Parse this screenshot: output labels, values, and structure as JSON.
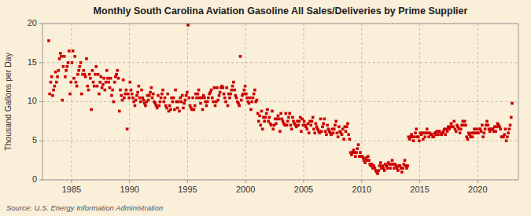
{
  "chart_data": {
    "type": "scatter",
    "title": "Monthly South Carolina Aviation Gasoline All Sales/Deliveries by Prime Supplier",
    "ylabel": "Thousand Gallons per Day",
    "source": "Source: U.S. Energy Information Administration",
    "color": "#cc0000",
    "marker": "square",
    "grid": true,
    "xlim": [
      1982.5,
      2023.5
    ],
    "ylim": [
      0,
      20
    ],
    "xticks": [
      1985,
      1990,
      1995,
      2000,
      2005,
      2010,
      2015,
      2020
    ],
    "yticks": [
      0,
      5,
      10,
      15,
      20
    ],
    "x": [
      1983.0417,
      1983.125,
      1983.2083,
      1983.2917,
      1983.375,
      1983.4583,
      1983.5417,
      1983.625,
      1983.7083,
      1983.7917,
      1983.875,
      1983.9583,
      1984.0417,
      1984.125,
      1984.2083,
      1984.2917,
      1984.375,
      1984.4583,
      1984.5417,
      1984.625,
      1984.7083,
      1984.7917,
      1984.875,
      1984.9583,
      1985.0417,
      1985.125,
      1985.2083,
      1985.2917,
      1985.375,
      1985.4583,
      1985.5417,
      1985.625,
      1985.7083,
      1985.7917,
      1985.875,
      1985.9583,
      1986.0417,
      1986.125,
      1986.2083,
      1986.2917,
      1986.375,
      1986.4583,
      1986.5417,
      1986.625,
      1986.7083,
      1986.7917,
      1986.875,
      1986.9583,
      1987.0417,
      1987.125,
      1987.2083,
      1987.2917,
      1987.375,
      1987.4583,
      1987.5417,
      1987.625,
      1987.7083,
      1987.7917,
      1987.875,
      1987.9583,
      1988.0417,
      1988.125,
      1988.2083,
      1988.2917,
      1988.375,
      1988.4583,
      1988.5417,
      1988.625,
      1988.7083,
      1988.7917,
      1988.875,
      1988.9583,
      1989.0417,
      1989.125,
      1989.2083,
      1989.2917,
      1989.375,
      1989.4583,
      1989.5417,
      1989.625,
      1989.7083,
      1989.7917,
      1989.875,
      1989.9583,
      1990.0417,
      1990.125,
      1990.2083,
      1990.2917,
      1990.375,
      1990.4583,
      1990.5417,
      1990.625,
      1990.7083,
      1990.7917,
      1990.875,
      1990.9583,
      1991.0417,
      1991.125,
      1991.2083,
      1991.2917,
      1991.375,
      1991.4583,
      1991.5417,
      1991.625,
      1991.7083,
      1991.7917,
      1991.875,
      1991.9583,
      1992.0417,
      1992.125,
      1992.2083,
      1992.2917,
      1992.375,
      1992.4583,
      1992.5417,
      1992.625,
      1992.7083,
      1992.7917,
      1992.875,
      1992.9583,
      1993.0417,
      1993.125,
      1993.2083,
      1993.2917,
      1993.375,
      1993.4583,
      1993.5417,
      1993.625,
      1993.7083,
      1993.7917,
      1993.875,
      1993.9583,
      1994.0417,
      1994.125,
      1994.2083,
      1994.2917,
      1994.375,
      1994.4583,
      1994.5417,
      1994.625,
      1994.7083,
      1994.7917,
      1994.875,
      1994.9583,
      1995.0417,
      1995.125,
      1995.2083,
      1995.2917,
      1995.375,
      1995.4583,
      1995.5417,
      1995.625,
      1995.7083,
      1995.7917,
      1995.875,
      1995.9583,
      1996.0417,
      1996.125,
      1996.2083,
      1996.2917,
      1996.375,
      1996.4583,
      1996.5417,
      1996.625,
      1996.7083,
      1996.7917,
      1996.875,
      1996.9583,
      1997.0417,
      1997.125,
      1997.2083,
      1997.2917,
      1997.375,
      1997.4583,
      1997.5417,
      1997.625,
      1997.7083,
      1997.7917,
      1997.875,
      1997.9583,
      1998.0417,
      1998.125,
      1998.2083,
      1998.2917,
      1998.375,
      1998.4583,
      1998.5417,
      1998.625,
      1998.7083,
      1998.7917,
      1998.875,
      1998.9583,
      1999.0417,
      1999.125,
      1999.2083,
      1999.2917,
      1999.375,
      1999.4583,
      1999.5417,
      1999.625,
      1999.7083,
      1999.7917,
      1999.875,
      1999.9583,
      2000.0417,
      2000.125,
      2000.2083,
      2000.2917,
      2000.375,
      2000.4583,
      2000.5417,
      2000.625,
      2000.7083,
      2000.7917,
      2000.875,
      2000.9583,
      2001.0417,
      2001.125,
      2001.2083,
      2001.2917,
      2001.375,
      2001.4583,
      2001.5417,
      2001.625,
      2001.7083,
      2001.7917,
      2001.875,
      2001.9583,
      2002.0417,
      2002.125,
      2002.2083,
      2002.2917,
      2002.375,
      2002.4583,
      2002.5417,
      2002.625,
      2002.7083,
      2002.7917,
      2002.875,
      2002.9583,
      2003.0417,
      2003.125,
      2003.2083,
      2003.2917,
      2003.375,
      2003.4583,
      2003.5417,
      2003.625,
      2003.7083,
      2003.7917,
      2003.875,
      2003.9583,
      2004.0417,
      2004.125,
      2004.2083,
      2004.2917,
      2004.375,
      2004.4583,
      2004.5417,
      2004.625,
      2004.7083,
      2004.7917,
      2004.875,
      2004.9583,
      2005.0417,
      2005.125,
      2005.2083,
      2005.2917,
      2005.375,
      2005.4583,
      2005.5417,
      2005.625,
      2005.7083,
      2005.7917,
      2005.875,
      2005.9583,
      2006.0417,
      2006.125,
      2006.2083,
      2006.2917,
      2006.375,
      2006.4583,
      2006.5417,
      2006.625,
      2006.7083,
      2006.7917,
      2006.875,
      2006.9583,
      2007.0417,
      2007.125,
      2007.2083,
      2007.2917,
      2007.375,
      2007.4583,
      2007.5417,
      2007.625,
      2007.7083,
      2007.7917,
      2007.875,
      2007.9583,
      2008.0417,
      2008.125,
      2008.2083,
      2008.2917,
      2008.375,
      2008.4583,
      2008.5417,
      2008.625,
      2008.7083,
      2008.7917,
      2008.875,
      2008.9583,
      2009.0417,
      2009.125,
      2009.2083,
      2009.2917,
      2009.375,
      2009.4583,
      2009.5417,
      2009.625,
      2009.7083,
      2009.7917,
      2009.875,
      2009.9583,
      2010.0417,
      2010.125,
      2010.2083,
      2010.2917,
      2010.375,
      2010.4583,
      2010.5417,
      2010.625,
      2010.7083,
      2010.7917,
      2010.875,
      2010.9583,
      2011.0417,
      2011.125,
      2011.2083,
      2011.2917,
      2011.375,
      2011.4583,
      2011.5417,
      2011.625,
      2011.7083,
      2011.7917,
      2011.875,
      2011.9583,
      2012.0417,
      2012.125,
      2012.2083,
      2012.2917,
      2012.375,
      2012.4583,
      2012.5417,
      2012.625,
      2012.7083,
      2012.7917,
      2012.875,
      2012.9583,
      2013.0417,
      2013.125,
      2013.2083,
      2013.2917,
      2013.375,
      2013.4583,
      2013.5417,
      2013.625,
      2013.7083,
      2013.7917,
      2013.875,
      2013.9583,
      2014.0417,
      2014.125,
      2014.2083,
      2014.2917,
      2014.375,
      2014.4583,
      2014.5417,
      2014.625,
      2014.7083,
      2014.7917,
      2014.875,
      2014.9583,
      2015.0417,
      2015.125,
      2015.2083,
      2015.2917,
      2015.375,
      2015.4583,
      2015.5417,
      2015.625,
      2015.7083,
      2015.7917,
      2015.875,
      2015.9583,
      2016.0417,
      2016.125,
      2016.2083,
      2016.2917,
      2016.375,
      2016.4583,
      2016.5417,
      2016.625,
      2016.7083,
      2016.7917,
      2016.875,
      2016.9583,
      2017.0417,
      2017.125,
      2017.2083,
      2017.2917,
      2017.375,
      2017.4583,
      2017.5417,
      2017.625,
      2017.7083,
      2017.7917,
      2017.875,
      2017.9583,
      2018.0417,
      2018.125,
      2018.2083,
      2018.2917,
      2018.375,
      2018.4583,
      2018.5417,
      2018.625,
      2018.7083,
      2018.7917,
      2018.875,
      2018.9583,
      2019.0417,
      2019.125,
      2019.2083,
      2019.2917,
      2019.375,
      2019.4583,
      2019.5417,
      2019.625,
      2019.7083,
      2019.7917,
      2019.875,
      2019.9583,
      2020.0417,
      2020.125,
      2020.2083,
      2020.2917,
      2020.375,
      2020.4583,
      2020.5417,
      2020.625,
      2020.7083,
      2020.7917,
      2020.875,
      2020.9583,
      2021.0417,
      2021.125,
      2021.2083,
      2021.2917,
      2021.375,
      2021.4583,
      2021.5417,
      2021.625,
      2021.7083,
      2021.7917,
      2021.875,
      2021.9583,
      2022.0417,
      2022.125,
      2022.2083,
      2022.2917,
      2022.375,
      2022.4583,
      2022.5417,
      2022.625,
      2022.7083,
      2022.7917,
      2022.875,
      2022.9583
    ],
    "values": [
      17.8,
      11.0,
      12.5,
      13.2,
      10.8,
      11.5,
      12.0,
      13.8,
      12.5,
      13.2,
      14.0,
      15.5,
      16.2,
      15.8,
      10.2,
      14.5,
      15.8,
      13.2,
      14.0,
      14.5,
      15.0,
      16.5,
      11.0,
      12.5,
      15.0,
      16.5,
      13.0,
      15.8,
      12.5,
      12.0,
      13.5,
      14.0,
      14.5,
      15.0,
      11.0,
      13.5,
      14.0,
      13.5,
      13.2,
      15.5,
      12.0,
      11.5,
      13.5,
      13.0,
      9.0,
      14.0,
      12.5,
      12.0,
      13.5,
      14.5,
      12.0,
      13.5,
      11.0,
      12.5,
      13.2,
      11.8,
      12.2,
      13.0,
      11.5,
      12.5,
      14.0,
      13.0,
      12.5,
      11.8,
      13.0,
      10.8,
      11.5,
      10.0,
      12.5,
      13.2,
      13.5,
      14.0,
      13.0,
      8.8,
      11.5,
      10.8,
      10.2,
      12.8,
      10.5,
      11.0,
      11.5,
      6.5,
      11.0,
      10.5,
      12.5,
      11.5,
      11.0,
      10.5,
      10.0,
      9.5,
      10.2,
      10.8,
      11.2,
      12.0,
      10.5,
      10.0,
      11.5,
      10.5,
      10.2,
      9.8,
      9.5,
      10.0,
      10.8,
      10.2,
      10.8,
      11.2,
      11.8,
      10.5,
      11.0,
      10.0,
      9.8,
      9.5,
      9.2,
      10.8,
      9.5,
      10.0,
      10.5,
      11.0,
      11.5,
      10.0,
      10.5,
      9.5,
      9.2,
      11.0,
      8.8,
      9.5,
      9.0,
      10.5,
      10.0,
      10.5,
      9.0,
      11.5,
      10.0,
      9.2,
      10.0,
      8.8,
      10.5,
      10.0,
      10.8,
      9.2,
      9.8,
      10.2,
      10.8,
      11.2,
      19.8,
      10.5,
      9.5,
      9.2,
      9.0,
      10.5,
      9.0,
      9.5,
      11.0,
      10.5,
      11.0,
      11.5,
      10.5,
      9.8,
      10.5,
      9.0,
      10.8,
      10.5,
      10.0,
      9.5,
      10.0,
      10.5,
      11.0,
      11.2,
      11.5,
      10.5,
      10.0,
      11.8,
      9.5,
      10.0,
      11.8,
      10.2,
      10.8,
      11.2,
      11.8,
      12.0,
      11.8,
      11.0,
      10.5,
      10.0,
      11.8,
      9.5,
      11.0,
      10.5,
      11.0,
      11.5,
      12.0,
      12.5,
      11.5,
      10.8,
      10.5,
      10.0,
      9.8,
      9.5,
      15.8,
      10.2,
      10.8,
      11.0,
      11.5,
      12.0,
      11.0,
      10.5,
      10.0,
      9.8,
      10.5,
      9.0,
      10.0,
      10.5,
      11.0,
      11.5,
      10.0,
      10.2,
      8.5,
      7.5,
      8.2,
      7.0,
      8.8,
      6.5,
      8.0,
      7.5,
      8.0,
      8.5,
      9.0,
      7.5,
      8.0,
      7.2,
      7.0,
      8.8,
      6.5,
      7.0,
      7.8,
      7.2,
      7.8,
      8.2,
      7.8,
      6.2,
      8.5,
      7.8,
      7.5,
      7.2,
      7.0,
      8.5,
      7.0,
      7.5,
      8.0,
      8.5,
      7.0,
      6.5,
      8.0,
      7.5,
      7.2,
      7.0,
      6.8,
      7.5,
      7.0,
      7.5,
      8.0,
      6.2,
      7.8,
      7.0,
      7.5,
      7.0,
      6.8,
      6.5,
      7.2,
      6.0,
      7.5,
      7.0,
      7.5,
      8.0,
      6.5,
      6.0,
      7.2,
      6.8,
      6.5,
      6.2,
      6.0,
      7.8,
      6.2,
      6.8,
      7.2,
      7.8,
      6.2,
      5.8,
      7.0,
      6.5,
      6.2,
      6.0,
      5.8,
      6.5,
      6.0,
      6.5,
      7.0,
      7.5,
      6.0,
      5.5,
      6.8,
      6.2,
      6.0,
      5.8,
      6.5,
      5.2,
      6.8,
      6.2,
      6.8,
      7.2,
      5.8,
      5.2,
      3.5,
      3.2,
      3.5,
      3.8,
      3.5,
      3.0,
      3.5,
      4.0,
      4.5,
      3.0,
      3.5,
      3.0,
      3.0,
      2.8,
      2.5,
      2.2,
      2.8,
      2.5,
      3.0,
      2.5,
      2.0,
      1.8,
      2.0,
      1.5,
      1.8,
      1.5,
      1.2,
      1.0,
      0.8,
      1.2,
      1.8,
      2.2,
      1.5,
      1.8,
      1.5,
      1.2,
      2.0,
      1.8,
      1.5,
      2.2,
      2.0,
      1.5,
      2.0,
      2.5,
      2.0,
      1.5,
      2.0,
      1.8,
      1.5,
      1.2,
      1.8,
      1.8,
      1.5,
      1.0,
      1.5,
      2.0,
      2.5,
      1.8,
      1.5,
      1.8,
      5.5,
      5.2,
      5.5,
      5.8,
      5.5,
      5.0,
      5.5,
      6.0,
      6.5,
      5.5,
      5.5,
      5.0,
      6.0,
      5.8,
      6.0,
      5.2,
      6.0,
      5.5,
      6.0,
      6.5,
      6.0,
      5.5,
      6.0,
      5.8,
      5.8,
      5.5,
      5.5,
      6.0,
      5.8,
      6.2,
      5.8,
      6.2,
      6.2,
      5.8,
      5.8,
      6.0,
      6.2,
      6.5,
      5.8,
      6.5,
      6.2,
      6.8,
      6.5,
      6.8,
      7.2,
      6.8,
      6.8,
      7.5,
      6.5,
      6.2,
      7.0,
      6.8,
      6.5,
      6.0,
      6.5,
      7.0,
      7.5,
      7.0,
      7.5,
      7.0,
      5.5,
      5.2,
      6.0,
      5.8,
      5.5,
      6.0,
      5.5,
      6.0,
      6.5,
      6.0,
      6.5,
      6.0,
      6.0,
      6.5,
      6.5,
      6.2,
      7.0,
      5.5,
      6.0,
      6.5,
      7.0,
      7.5,
      7.0,
      6.5,
      6.2,
      6.5,
      6.5,
      6.5,
      6.2,
      6.8,
      6.2,
      6.8,
      7.2,
      7.0,
      6.8,
      6.5,
      5.5,
      5.5,
      5.5,
      5.8,
      6.5,
      5.0,
      5.5,
      6.0,
      6.5,
      7.0,
      8.0,
      9.8
    ]
  }
}
